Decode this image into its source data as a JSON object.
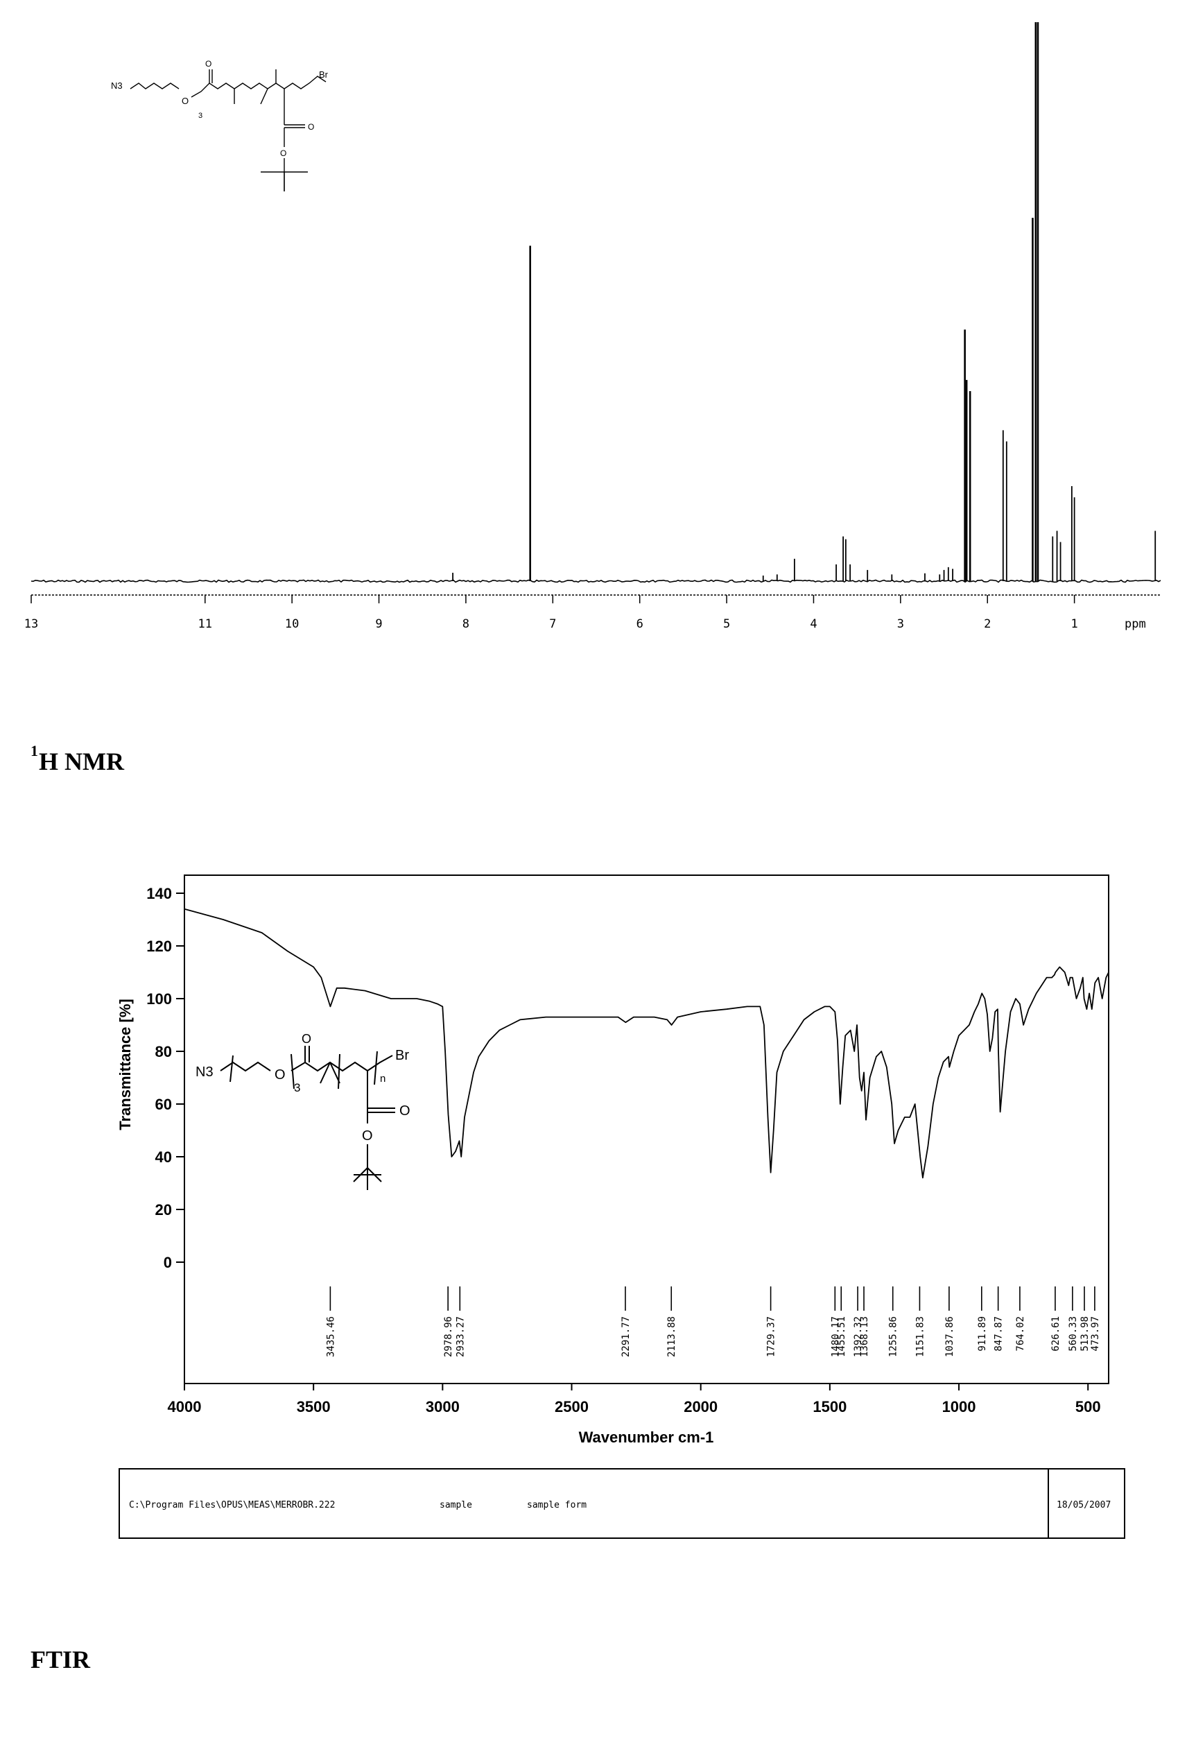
{
  "nmr": {
    "caption_sup": "1",
    "caption_rest": "H NMR",
    "axis_unit": "ppm",
    "chart_data": {
      "type": "line",
      "xlabel": "ppm",
      "xlim": [
        13,
        0
      ],
      "x_ticks": [
        "13",
        "11",
        "10",
        "9",
        "8",
        "7",
        "6",
        "5",
        "4",
        "3",
        "2",
        "1"
      ],
      "y_ticks": [],
      "peaks": [
        {
          "ppm": 8.15,
          "height": 0.015
        },
        {
          "ppm": 7.26,
          "height": 0.6
        },
        {
          "ppm": 4.58,
          "height": 0.01
        },
        {
          "ppm": 4.42,
          "height": 0.012
        },
        {
          "ppm": 4.22,
          "height": 0.04
        },
        {
          "ppm": 3.74,
          "height": 0.03
        },
        {
          "ppm": 3.66,
          "height": 0.08
        },
        {
          "ppm": 3.63,
          "height": 0.075
        },
        {
          "ppm": 3.58,
          "height": 0.03
        },
        {
          "ppm": 3.38,
          "height": 0.02
        },
        {
          "ppm": 3.1,
          "height": 0.012
        },
        {
          "ppm": 2.72,
          "height": 0.014
        },
        {
          "ppm": 2.55,
          "height": 0.012
        },
        {
          "ppm": 2.5,
          "height": 0.02
        },
        {
          "ppm": 2.45,
          "height": 0.025
        },
        {
          "ppm": 2.4,
          "height": 0.022
        },
        {
          "ppm": 2.26,
          "height": 0.45
        },
        {
          "ppm": 2.24,
          "height": 0.36
        },
        {
          "ppm": 2.2,
          "height": 0.34
        },
        {
          "ppm": 1.82,
          "height": 0.27
        },
        {
          "ppm": 1.78,
          "height": 0.25
        },
        {
          "ppm": 1.48,
          "height": 0.65
        },
        {
          "ppm": 1.445,
          "height": 1.0
        },
        {
          "ppm": 1.42,
          "height": 1.0
        },
        {
          "ppm": 1.25,
          "height": 0.08
        },
        {
          "ppm": 1.2,
          "height": 0.09
        },
        {
          "ppm": 1.16,
          "height": 0.07
        },
        {
          "ppm": 1.03,
          "height": 0.17
        },
        {
          "ppm": 1.0,
          "height": 0.15
        },
        {
          "ppm": 0.07,
          "height": 0.09
        }
      ]
    }
  },
  "ftir": {
    "caption": "FTIR",
    "footer_path": "C:\\Program Files\\OPUS\\MEAS\\MERROBR.222",
    "footer_mid1": "sample",
    "footer_mid2": "sample form",
    "footer_date": "18/05/2007",
    "chart_data": {
      "type": "line",
      "xlabel": "Wavenumber cm-1",
      "ylabel": "Transmittance [%]",
      "xlim": [
        4000,
        420
      ],
      "ylim": [
        0,
        140
      ],
      "x_ticks": [
        4000,
        3500,
        3000,
        2500,
        2000,
        1500,
        1000,
        500
      ],
      "y_ticks": [
        0,
        20,
        40,
        60,
        80,
        100,
        120,
        140
      ],
      "spectrum_x": [
        4000,
        3850,
        3700,
        3600,
        3500,
        3470,
        3435,
        3410,
        3380,
        3300,
        3200,
        3100,
        3050,
        3020,
        3000,
        2990,
        2978,
        2965,
        2950,
        2935,
        2928,
        2915,
        2880,
        2860,
        2820,
        2780,
        2740,
        2700,
        2600,
        2500,
        2400,
        2320,
        2291,
        2260,
        2180,
        2130,
        2113,
        2090,
        2000,
        1900,
        1820,
        1790,
        1770,
        1755,
        1740,
        1729,
        1718,
        1705,
        1680,
        1640,
        1600,
        1560,
        1520,
        1500,
        1480,
        1470,
        1460,
        1450,
        1440,
        1420,
        1405,
        1395,
        1385,
        1377,
        1368,
        1360,
        1345,
        1320,
        1300,
        1280,
        1260,
        1250,
        1235,
        1210,
        1190,
        1170,
        1160,
        1150,
        1140,
        1120,
        1100,
        1080,
        1060,
        1040,
        1037,
        1020,
        1000,
        980,
        960,
        940,
        925,
        911,
        900,
        890,
        880,
        870,
        860,
        850,
        847,
        840,
        820,
        800,
        780,
        764,
        750,
        730,
        700,
        680,
        660,
        640,
        630,
        626,
        610,
        590,
        575,
        569,
        560,
        545,
        530,
        520,
        515,
        505,
        495,
        485,
        473,
        460,
        445,
        430,
        420
      ],
      "spectrum_y": [
        134,
        130,
        125,
        118,
        112,
        108,
        97,
        104,
        104,
        103,
        100,
        100,
        99,
        98,
        97,
        80,
        56,
        40,
        42,
        46,
        40,
        55,
        72,
        78,
        84,
        88,
        90,
        92,
        93,
        93,
        93,
        93,
        91,
        93,
        93,
        92,
        90,
        93,
        95,
        96,
        97,
        97,
        97,
        90,
        55,
        34,
        50,
        72,
        80,
        86,
        92,
        95,
        97,
        97,
        95,
        84,
        60,
        74,
        86,
        88,
        80,
        90,
        70,
        65,
        72,
        54,
        70,
        78,
        80,
        74,
        60,
        45,
        50,
        55,
        55,
        60,
        50,
        40,
        32,
        44,
        60,
        70,
        76,
        78,
        74,
        80,
        86,
        88,
        90,
        95,
        98,
        102,
        100,
        94,
        80,
        85,
        95,
        96,
        80,
        57,
        80,
        95,
        100,
        98,
        90,
        96,
        102,
        105,
        108,
        108,
        109,
        110,
        112,
        110,
        105,
        108,
        108,
        100,
        104,
        108,
        100,
        96,
        102,
        96,
        106,
        108,
        100,
        108,
        110,
        112,
        112
      ],
      "peak_labels": [
        "3435.46",
        "2978.96",
        "2933.27",
        "2291.77",
        "2113.88",
        "1729.37",
        "1480.17",
        "1455.51",
        "1392.32",
        "1368.13",
        "1255.86",
        "1151.83",
        "1037.86",
        "911.89",
        "847.87",
        "764.02",
        "626.61",
        "560.33",
        "513.98",
        "473.97"
      ],
      "peak_positions": [
        3435,
        2979,
        2933,
        2292,
        2114,
        1729,
        1480,
        1456,
        1392,
        1368,
        1256,
        1152,
        1038,
        912,
        848,
        764,
        627,
        560,
        514,
        474
      ]
    }
  },
  "structures": {
    "n3": "N3",
    "br": "Br",
    "o": "O",
    "sub_3": "3",
    "sub_n": "n"
  }
}
